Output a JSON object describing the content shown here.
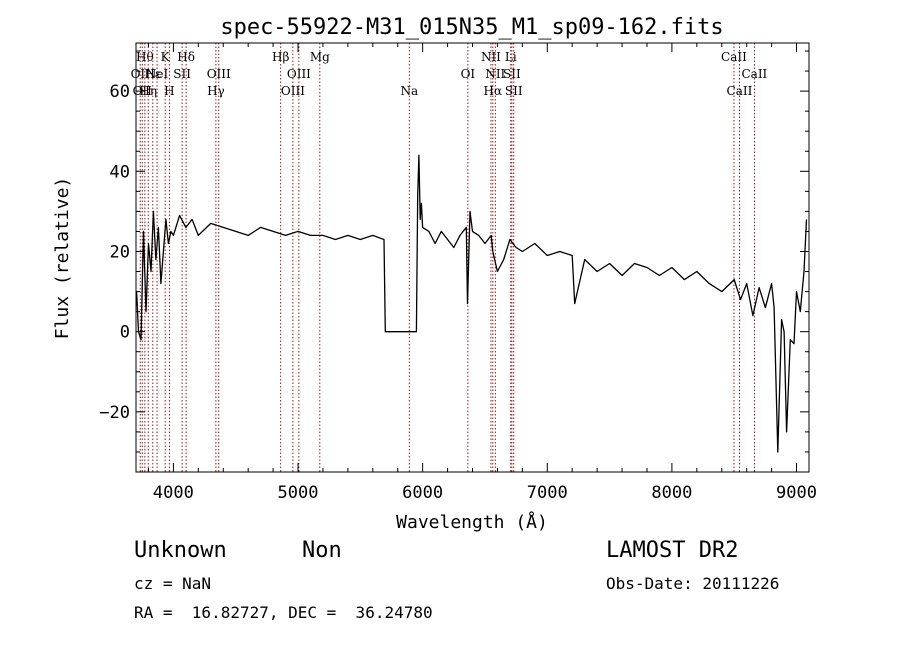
{
  "chart_data": {
    "type": "line",
    "title": "spec-55922-M31_015N35_M1_sp09-162.fits",
    "xlabel": "Wavelength (Å)",
    "ylabel": "Flux (relative)",
    "xlim": [
      3700,
      9100
    ],
    "ylim": [
      -35,
      72
    ],
    "xticks": [
      4000,
      5000,
      6000,
      7000,
      8000,
      9000
    ],
    "yticks": [
      -20,
      0,
      20,
      40,
      60
    ],
    "line_color": "#000000",
    "marker_color": "#8b0000",
    "series": [
      {
        "x": [
          3705,
          3720,
          3740,
          3760,
          3780,
          3800,
          3820,
          3840,
          3860,
          3880,
          3900,
          3920,
          3940,
          3960,
          3980,
          4000,
          4050,
          4100,
          4150,
          4200,
          4300,
          4400,
          4500,
          4600,
          4700,
          4800,
          4900,
          5000,
          5100,
          5200,
          5300,
          5400,
          5500,
          5600,
          5690,
          5700,
          5710,
          5750,
          5800,
          5850,
          5900,
          5950,
          5960,
          5970,
          5980,
          5990,
          6000,
          6050,
          6100,
          6150,
          6200,
          6250,
          6300,
          6350,
          6360,
          6380,
          6400,
          6450,
          6500,
          6550,
          6563,
          6600,
          6650,
          6700,
          6750,
          6800,
          6900,
          7000,
          7100,
          7200,
          7220,
          7300,
          7400,
          7500,
          7600,
          7700,
          7800,
          7900,
          8000,
          8100,
          8200,
          8300,
          8400,
          8500,
          8550,
          8600,
          8650,
          8700,
          8750,
          8800,
          8820,
          8850,
          8880,
          8900,
          8920,
          8950,
          8980,
          9000,
          9030,
          9060,
          9080
        ],
        "y": [
          10,
          0,
          -2,
          25,
          5,
          22,
          15,
          30,
          18,
          26,
          12,
          20,
          28,
          22,
          25,
          24,
          29,
          26,
          28,
          24,
          27,
          26,
          25,
          24,
          26,
          25,
          24,
          25,
          24,
          24,
          23,
          24,
          23,
          24,
          23,
          0,
          0,
          0,
          0,
          0,
          0,
          0,
          34,
          44,
          28,
          32,
          26,
          25,
          22,
          25,
          23,
          21,
          24,
          26,
          7,
          30,
          25,
          24,
          22,
          24,
          20,
          15,
          18,
          23,
          21,
          20,
          22,
          19,
          20,
          19,
          7,
          18,
          15,
          17,
          14,
          17,
          16,
          14,
          16,
          13,
          15,
          12,
          10,
          13,
          8,
          12,
          4,
          11,
          6,
          12,
          6,
          -30,
          3,
          0,
          -25,
          -2,
          -3,
          10,
          5,
          15,
          28
        ]
      }
    ],
    "lines": [
      {
        "x": 3734,
        "name": "OII",
        "row": 1
      },
      {
        "x": 3750,
        "name": "OII",
        "row": 2
      },
      {
        "x": 3771,
        "name": "Hθ",
        "row": 0
      },
      {
        "x": 3798,
        "name": "Hη",
        "row": 2
      },
      {
        "x": 3835,
        "name": "Hε",
        "row": 1
      },
      {
        "x": 3869,
        "name": "NeI",
        "row": 1
      },
      {
        "x": 3934,
        "name": "K",
        "row": 0
      },
      {
        "x": 3968,
        "name": "H",
        "row": 2
      },
      {
        "x": 4070,
        "name": "SII",
        "row": 1
      },
      {
        "x": 4102,
        "name": "Hδ",
        "row": 0
      },
      {
        "x": 4341,
        "name": "Hγ",
        "row": 2
      },
      {
        "x": 4364,
        "name": "OIII",
        "row": 1
      },
      {
        "x": 4861,
        "name": "Hβ",
        "row": 0
      },
      {
        "x": 4959,
        "name": "OIII",
        "row": 2
      },
      {
        "x": 5007,
        "name": "OIII",
        "row": 1
      },
      {
        "x": 5175,
        "name": "Mg",
        "row": 0
      },
      {
        "x": 5893,
        "name": "Na",
        "row": 2
      },
      {
        "x": 6363,
        "name": "OI",
        "row": 1
      },
      {
        "x": 6548,
        "name": "NII",
        "row": 0
      },
      {
        "x": 6563,
        "name": "Hα",
        "row": 2
      },
      {
        "x": 6583,
        "name": "NII",
        "row": 1
      },
      {
        "x": 6707,
        "name": "Li",
        "row": 0
      },
      {
        "x": 6716,
        "name": "SII",
        "row": 1
      },
      {
        "x": 6731,
        "name": "SII",
        "row": 2
      },
      {
        "x": 8498,
        "name": "CaII",
        "row": 0
      },
      {
        "x": 8542,
        "name": "CaII",
        "row": 2
      },
      {
        "x": 8662,
        "name": "CaII",
        "row": 1
      }
    ]
  },
  "info": {
    "class": "Unknown",
    "subclass": "Non",
    "cz": "cz = NaN",
    "radec": "RA =  16.82727, DEC =  36.24780",
    "survey": "LAMOST DR2",
    "obsdate": "Obs-Date: 20111226"
  }
}
